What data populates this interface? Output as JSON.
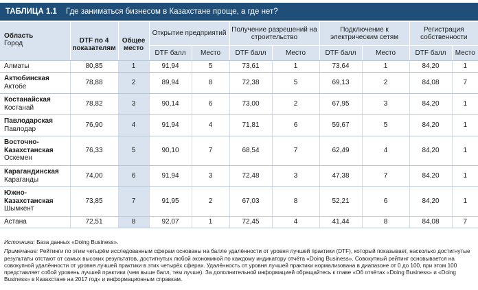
{
  "title": {
    "label": "ТАБЛИЦА 1.1",
    "text": "Где заниматься бизнесом в Казахстане проще, а где нет?"
  },
  "header": {
    "region_line1": "Область",
    "region_line2": "Город",
    "dtf4": "DTF по 4 показателям",
    "overall": "Общее место",
    "groups": [
      "Открытие предприятий",
      "Получение разрешений на строительство",
      "Подключение к электрическим сетям",
      "Регистрация собственности"
    ],
    "sub_score": "DTF балл",
    "sub_rank": "Место"
  },
  "rows": [
    {
      "region": "Алматы",
      "city": "",
      "bold": false,
      "dtf": "80,85",
      "rank": "1",
      "v": [
        "91,94",
        "5",
        "73,61",
        "1",
        "73,64",
        "1",
        "84,20",
        "1"
      ]
    },
    {
      "region": "Актюбинская",
      "city": "Актобе",
      "bold": true,
      "dtf": "78,88",
      "rank": "2",
      "v": [
        "89,94",
        "8",
        "72,38",
        "5",
        "69,13",
        "2",
        "84,08",
        "7"
      ]
    },
    {
      "region": "Костанайская",
      "city": "Костанай",
      "bold": true,
      "dtf": "78,82",
      "rank": "3",
      "v": [
        "90,14",
        "6",
        "73,00",
        "2",
        "67,95",
        "3",
        "84,20",
        "1"
      ]
    },
    {
      "region": "Павлодарская",
      "city": "Павлодар",
      "bold": true,
      "dtf": "76,90",
      "rank": "4",
      "v": [
        "91,94",
        "4",
        "71,81",
        "6",
        "59,67",
        "5",
        "84,20",
        "1"
      ]
    },
    {
      "region": "Восточно-Казахстанская",
      "city": "Оскемен",
      "bold": true,
      "dtf": "76,33",
      "rank": "5",
      "v": [
        "90,10",
        "7",
        "68,54",
        "7",
        "62,49",
        "4",
        "84,20",
        "1"
      ]
    },
    {
      "region": "Карагандинская",
      "city": "Караганды",
      "bold": true,
      "dtf": "74,00",
      "rank": "6",
      "v": [
        "91,94",
        "3",
        "72,48",
        "3",
        "47,38",
        "7",
        "84,20",
        "1"
      ]
    },
    {
      "region": "Южно-Казахстанская",
      "city": "Шымкент",
      "bold": true,
      "dtf": "73,85",
      "rank": "7",
      "v": [
        "91,95",
        "2",
        "67,03",
        "8",
        "52,21",
        "6",
        "84,20",
        "1"
      ]
    },
    {
      "region": "Астана",
      "city": "",
      "bold": false,
      "dtf": "72,51",
      "rank": "8",
      "v": [
        "92,07",
        "1",
        "72,45",
        "4",
        "41,44",
        "8",
        "84,08",
        "7"
      ]
    }
  ],
  "notes": {
    "source_label": "Источники:",
    "source_text": " База данных «Doing Business».",
    "note_label": "Примечание:",
    "note_text": " Рейтинги по этим четырём исследованным сферам основаны на балле удалённости от уровня лучшей практики (DTF), который показывает, насколько достигнутые результаты отстают от самых высоких результатов, достигнутых любой экономикой по каждому индикатору отчёта «Doing Business». Совокупный рейтинг основывается на совокупной удалённости от уровня лучшей практики в этих четырёх сферах. Удалённость от уровня лучшей практики нормализована в диапазоне от 0 до 100, при этом 100 представляет собой уровень лучшей практики (чем выше балл, тем лучше). За дополнительной информацией обращайтесь к главе «Об отчётах «Doing Business» и «Doing Business» в Казахстане на 2017 год» и информационным справкам."
  }
}
